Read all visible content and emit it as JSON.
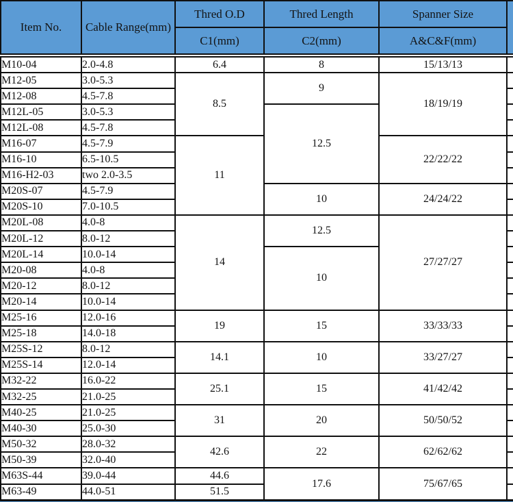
{
  "colors": {
    "header_bg": "#5b9bd5",
    "border": "#101010",
    "text": "#131313",
    "body_bg": "#ffffff"
  },
  "header": {
    "item_no": "Item No.",
    "cable_range": "Cable Range(mm)",
    "thred_od": "Thred O.D",
    "c1": "C1(mm)",
    "thred_length": "Thred Length",
    "c2": "C2(mm)",
    "spanner_size": "Spanner Size",
    "acf": "A&C&F(mm)"
  },
  "rows": [
    {
      "item": "M10-04",
      "cable": "2.0-4.8",
      "c1": {
        "v": "6.4",
        "span": 1
      },
      "c2": {
        "v": "8",
        "span": 1
      },
      "sp": {
        "v": "15/13/13",
        "span": 1
      }
    },
    {
      "item": "M12-05",
      "cable": "3.0-5.3",
      "c1": {
        "v": "8.5",
        "span": 4
      },
      "c2": {
        "v": "9",
        "span": 2
      },
      "sp": {
        "v": "18/19/19",
        "span": 4
      }
    },
    {
      "item": "M12-08",
      "cable": "4.5-7.8"
    },
    {
      "item": "M12L-05",
      "cable": "3.0-5.3",
      "c2": {
        "v": "12.5",
        "span": 5
      }
    },
    {
      "item": "M12L-08",
      "cable": "4.5-7.8"
    },
    {
      "item": "M16-07",
      "cable": "4.5-7.9",
      "c1": {
        "v": "11",
        "span": 5
      },
      "sp": {
        "v": "22/22/22",
        "span": 3
      }
    },
    {
      "item": "M16-10",
      "cable": "6.5-10.5"
    },
    {
      "item": "M16-H2-03",
      "cable": "two 2.0-3.5"
    },
    {
      "item": "M20S-07",
      "cable": "4.5-7.9",
      "c2": {
        "v": "10",
        "span": 2
      },
      "sp": {
        "v": "24/24/22",
        "span": 2
      }
    },
    {
      "item": "M20S-10",
      "cable": "7.0-10.5"
    },
    {
      "item": "M20L-08",
      "cable": "4.0-8",
      "c1": {
        "v": "14",
        "span": 6
      },
      "c2": {
        "v": "12.5",
        "span": 2
      },
      "sp": {
        "v": "27/27/27",
        "span": 6
      }
    },
    {
      "item": "M20L-12",
      "cable": "8.0-12"
    },
    {
      "item": "M20L-14",
      "cable": "10.0-14",
      "c2": {
        "v": "10",
        "span": 4
      }
    },
    {
      "item": "M20-08",
      "cable": "4.0-8"
    },
    {
      "item": "M20-12",
      "cable": "8.0-12"
    },
    {
      "item": "M20-14",
      "cable": "10.0-14"
    },
    {
      "item": "M25-16",
      "cable": "12.0-16",
      "c1": {
        "v": "19",
        "span": 2
      },
      "c2": {
        "v": "15",
        "span": 2
      },
      "sp": {
        "v": "33/33/33",
        "span": 2
      }
    },
    {
      "item": "M25-18",
      "cable": "14.0-18"
    },
    {
      "item": "M25S-12",
      "cable": "8.0-12",
      "c1": {
        "v": "14.1",
        "span": 2
      },
      "c2": {
        "v": "10",
        "span": 2
      },
      "sp": {
        "v": "33/27/27",
        "span": 2
      }
    },
    {
      "item": "M25S-14",
      "cable": "12.0-14"
    },
    {
      "item": "M32-22",
      "cable": "16.0-22",
      "c1": {
        "v": "25.1",
        "span": 2
      },
      "c2": {
        "v": "15",
        "span": 2
      },
      "sp": {
        "v": "41/42/42",
        "span": 2
      }
    },
    {
      "item": "M32-25",
      "cable": "21.0-25"
    },
    {
      "item": "M40-25",
      "cable": "21.0-25",
      "c1": {
        "v": "31",
        "span": 2
      },
      "c2": {
        "v": "20",
        "span": 2
      },
      "sp": {
        "v": "50/50/52",
        "span": 2
      }
    },
    {
      "item": "M40-30",
      "cable": "25.0-30"
    },
    {
      "item": "M50-32",
      "cable": "28.0-32",
      "c1": {
        "v": "42.6",
        "span": 2
      },
      "c2": {
        "v": "22",
        "span": 2
      },
      "sp": {
        "v": "62/62/62",
        "span": 2
      }
    },
    {
      "item": "M50-39",
      "cable": "32.0-40"
    },
    {
      "item": "M63S-44",
      "cable": "39.0-44",
      "c1": {
        "v": "44.6",
        "span": 1
      },
      "c2": {
        "v": "17.6",
        "span": 2
      },
      "sp": {
        "v": "75/67/65",
        "span": 2
      }
    },
    {
      "item": "M63-49",
      "cable": "44.0-51",
      "c1": {
        "v": "51.5",
        "span": 1
      }
    }
  ]
}
